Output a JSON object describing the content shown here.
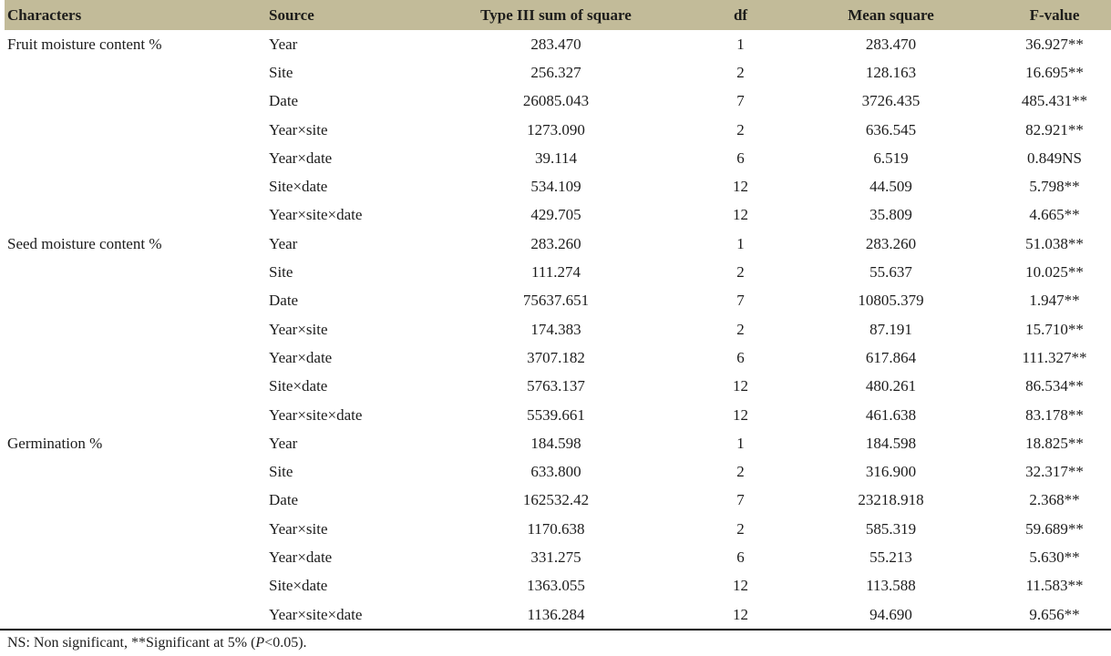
{
  "colors": {
    "header_bg": "#c2bb99",
    "text": "#1c1c1c",
    "table_bottom_border": "#000000"
  },
  "table": {
    "columns": {
      "characters": "Characters",
      "source": "Source",
      "sum_of_square": "Type III sum of square",
      "df": "df",
      "mean_square": "Mean square",
      "f_value": "F-value"
    },
    "rows": [
      {
        "character": "Fruit moisture content %",
        "source": "Year",
        "ss": "283.470",
        "df": "1",
        "ms": "283.470",
        "f": "36.927**"
      },
      {
        "character": "",
        "source": "Site",
        "ss": "256.327",
        "df": "2",
        "ms": "128.163",
        "f": "16.695**"
      },
      {
        "character": "",
        "source": "Date",
        "ss": "26085.043",
        "df": "7",
        "ms": "3726.435",
        "f": "485.431**"
      },
      {
        "character": "",
        "source": "Year×site",
        "ss": "1273.090",
        "df": "2",
        "ms": "636.545",
        "f": "82.921**"
      },
      {
        "character": "",
        "source": "Year×date",
        "ss": "39.114",
        "df": "6",
        "ms": "6.519",
        "f": "0.849NS"
      },
      {
        "character": "",
        "source": "Site×date",
        "ss": "534.109",
        "df": "12",
        "ms": "44.509",
        "f": "5.798**"
      },
      {
        "character": "",
        "source": "Year×site×date",
        "ss": "429.705",
        "df": "12",
        "ms": "35.809",
        "f": "4.665**"
      },
      {
        "character": "Seed moisture content %",
        "source": "Year",
        "ss": "283.260",
        "df": "1",
        "ms": "283.260",
        "f": "51.038**"
      },
      {
        "character": "",
        "source": "Site",
        "ss": "111.274",
        "df": "2",
        "ms": "55.637",
        "f": "10.025**"
      },
      {
        "character": "",
        "source": "Date",
        "ss": "75637.651",
        "df": "7",
        "ms": "10805.379",
        "f": "1.947**"
      },
      {
        "character": "",
        "source": "Year×site",
        "ss": "174.383",
        "df": "2",
        "ms": "87.191",
        "f": "15.710**"
      },
      {
        "character": "",
        "source": "Year×date",
        "ss": "3707.182",
        "df": "6",
        "ms": "617.864",
        "f": "111.327**"
      },
      {
        "character": "",
        "source": "Site×date",
        "ss": "5763.137",
        "df": "12",
        "ms": "480.261",
        "f": "86.534**"
      },
      {
        "character": "",
        "source": "Year×site×date",
        "ss": "5539.661",
        "df": "12",
        "ms": "461.638",
        "f": "83.178**"
      },
      {
        "character": "Germination %",
        "source": "Year",
        "ss": "184.598",
        "df": "1",
        "ms": "184.598",
        "f": "18.825**"
      },
      {
        "character": "",
        "source": "Site",
        "ss": "633.800",
        "df": "2",
        "ms": "316.900",
        "f": "32.317**"
      },
      {
        "character": "",
        "source": "Date",
        "ss": "162532.42",
        "df": "7",
        "ms": "23218.918",
        "f": "2.368**"
      },
      {
        "character": "",
        "source": "Year×site",
        "ss": "1170.638",
        "df": "2",
        "ms": "585.319",
        "f": "59.689**"
      },
      {
        "character": "",
        "source": "Year×date",
        "ss": "331.275",
        "df": "6",
        "ms": "55.213",
        "f": "5.630**"
      },
      {
        "character": "",
        "source": "Site×date",
        "ss": "1363.055",
        "df": "12",
        "ms": "113.588",
        "f": "11.583**"
      },
      {
        "character": "",
        "source": "Year×site×date",
        "ss": "1136.284",
        "df": "12",
        "ms": "94.690",
        "f": "9.656**"
      }
    ]
  },
  "footnote": {
    "prefix": "NS: Non significant, **Significant at 5% (",
    "italic_p": "P",
    "suffix": "<0.05)."
  }
}
